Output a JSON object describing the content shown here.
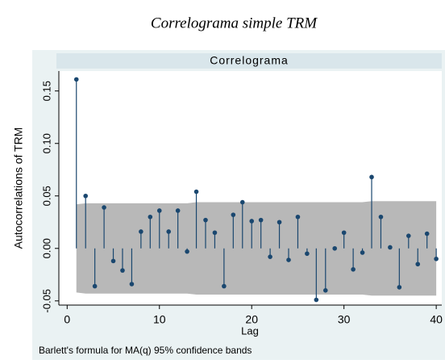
{
  "chart_data": {
    "type": "correlogram",
    "title": "Correlograma simple TRM",
    "subtitle": "Correlograma",
    "x_label": "Lag",
    "y_label": "Autocorrelations of TRM",
    "note": "Barlett's formula for MA(q) 95% confidence bands",
    "x": [
      1,
      2,
      3,
      4,
      5,
      6,
      7,
      8,
      9,
      10,
      11,
      12,
      13,
      14,
      15,
      16,
      17,
      18,
      19,
      20,
      21,
      22,
      23,
      24,
      25,
      26,
      27,
      28,
      29,
      30,
      31,
      32,
      33,
      34,
      35,
      36,
      37,
      38,
      39,
      40
    ],
    "values": [
      0.161,
      0.05,
      -0.036,
      0.039,
      -0.012,
      -0.021,
      -0.034,
      0.016,
      0.03,
      0.036,
      0.016,
      0.036,
      -0.003,
      0.054,
      0.027,
      0.015,
      -0.036,
      0.032,
      0.044,
      0.026,
      0.027,
      -0.008,
      0.025,
      -0.011,
      0.03,
      -0.005,
      -0.049,
      -0.04,
      0,
      0.015,
      -0.02,
      -0.004,
      0.068,
      0.03,
      0.001,
      -0.037,
      0.012,
      -0.015,
      0.014,
      -0.01
    ],
    "band_upper": [
      0.042,
      0.043,
      0.043,
      0.043,
      0.043,
      0.043,
      0.043,
      0.043,
      0.043,
      0.043,
      0.043,
      0.043,
      0.043,
      0.044,
      0.044,
      0.044,
      0.044,
      0.044,
      0.044,
      0.044,
      0.044,
      0.044,
      0.044,
      0.044,
      0.044,
      0.044,
      0.044,
      0.044,
      0.044,
      0.044,
      0.044,
      0.044,
      0.045,
      0.045,
      0.045,
      0.045,
      0.045,
      0.045,
      0.045,
      0.045
    ],
    "band_lower": [
      -0.042,
      -0.043,
      -0.043,
      -0.043,
      -0.043,
      -0.043,
      -0.043,
      -0.043,
      -0.043,
      -0.043,
      -0.043,
      -0.043,
      -0.043,
      -0.044,
      -0.044,
      -0.044,
      -0.044,
      -0.044,
      -0.044,
      -0.044,
      -0.044,
      -0.044,
      -0.044,
      -0.044,
      -0.044,
      -0.044,
      -0.044,
      -0.044,
      -0.044,
      -0.044,
      -0.044,
      -0.044,
      -0.045,
      -0.045,
      -0.045,
      -0.045,
      -0.045,
      -0.045,
      -0.045,
      -0.045
    ],
    "color": "#1a476f",
    "band_color": "#b8b8b8",
    "xlim": [
      -0.9,
      40.6
    ],
    "ylim": [
      -0.054,
      0.169
    ],
    "xticks": [
      0,
      10,
      20,
      30,
      40
    ],
    "yticks": [
      -0.05,
      {
        "value": 0,
        "label": "0.00"
      },
      0.05,
      {
        "value": 0.1,
        "label": "0.10"
      },
      0.15
    ]
  }
}
